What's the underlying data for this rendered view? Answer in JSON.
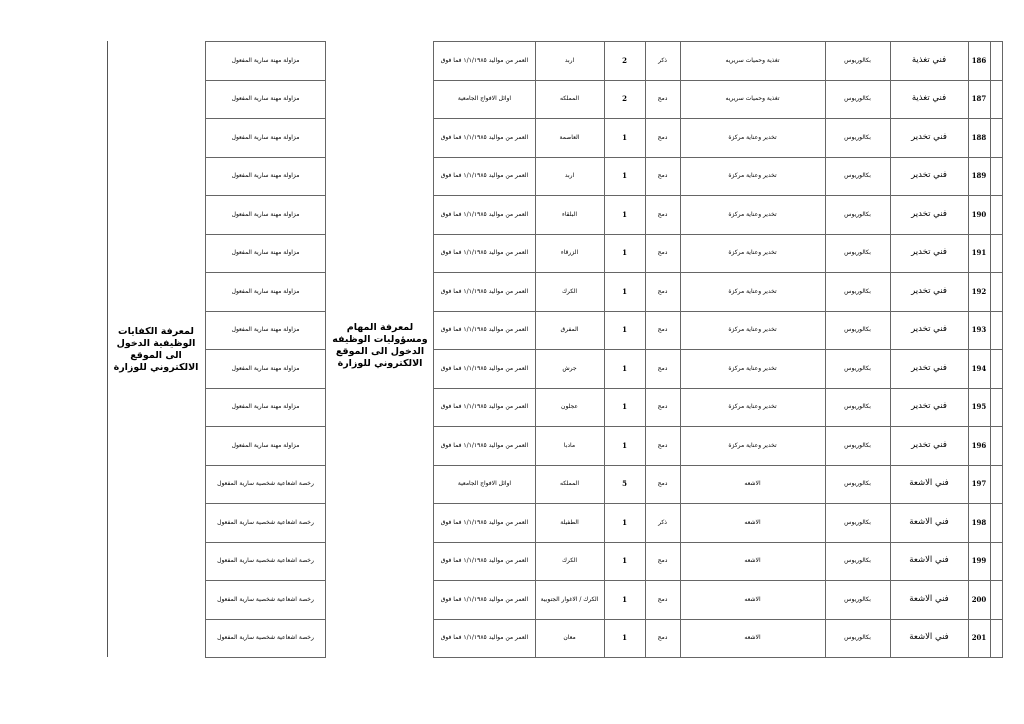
{
  "competencies_note": "لمعرفة الكفايات الوظيفية الدخول الى الموقع الالكتروني للوزارة",
  "duties_note": "لمعرفة المهام ومسؤوليات الوظيفه الدخول الى الموقع الالكتروني للوزارة",
  "rows": [
    {
      "no": "186",
      "title": "فني تغذية",
      "degree": "بكالوريوس",
      "major": "تغذية وحميات سريريه",
      "gender": "ذكر",
      "count": "2",
      "region": "اربد",
      "condition": "العمر من مواليد ١/١/١٩٨٥ فما فوق",
      "license": "مزاولة مهنة سارية المفعول"
    },
    {
      "no": "187",
      "title": "فني تغذية",
      "degree": "بكالوريوس",
      "major": "تغذية وحميات سريريه",
      "gender": "دمج",
      "count": "2",
      "region": "المملكه",
      "condition": "اوائل الافواج الجامعية",
      "license": "مزاولة مهنة سارية المفعول"
    },
    {
      "no": "188",
      "title": "فني تخدير",
      "degree": "بكالوريوس",
      "major": "تخدير وعناية مركزة",
      "gender": "دمج",
      "count": "1",
      "region": "العاصمة",
      "condition": "العمر من مواليد ١/١/١٩٨٥ فما فوق",
      "license": "مزاولة مهنة سارية المفعول"
    },
    {
      "no": "189",
      "title": "فني تخدير",
      "degree": "بكالوريوس",
      "major": "تخدير وعناية مركزة",
      "gender": "دمج",
      "count": "1",
      "region": "اربد",
      "condition": "العمر من مواليد ١/١/١٩٨٥ فما فوق",
      "license": "مزاولة مهنة سارية المفعول"
    },
    {
      "no": "190",
      "title": "فني تخدير",
      "degree": "بكالوريوس",
      "major": "تخدير وعناية مركزة",
      "gender": "دمج",
      "count": "1",
      "region": "البلقاء",
      "condition": "العمر من مواليد ١/١/١٩٨٥ فما فوق",
      "license": "مزاولة مهنة سارية المفعول"
    },
    {
      "no": "191",
      "title": "فني تخدير",
      "degree": "بكالوريوس",
      "major": "تخدير وعناية مركزة",
      "gender": "دمج",
      "count": "1",
      "region": "الزرقاء",
      "condition": "العمر من مواليد ١/١/١٩٨٥ فما فوق",
      "license": "مزاولة مهنة سارية المفعول"
    },
    {
      "no": "192",
      "title": "فني تخدير",
      "degree": "بكالوريوس",
      "major": "تخدير وعناية مركزة",
      "gender": "دمج",
      "count": "1",
      "region": "الكرك",
      "condition": "العمر من مواليد ١/١/١٩٨٥ فما فوق",
      "license": "مزاولة مهنة سارية المفعول"
    },
    {
      "no": "193",
      "title": "فني تخدير",
      "degree": "بكالوريوس",
      "major": "تخدير وعناية مركزة",
      "gender": "دمج",
      "count": "1",
      "region": "المفرق",
      "condition": "العمر من مواليد ١/١/١٩٨٥ فما فوق",
      "license": "مزاولة مهنة سارية المفعول"
    },
    {
      "no": "194",
      "title": "فني تخدير",
      "degree": "بكالوريوس",
      "major": "تخدير وعناية مركزة",
      "gender": "دمج",
      "count": "1",
      "region": "جرش",
      "condition": "العمر من مواليد ١/١/١٩٨٥ فما فوق",
      "license": "مزاولة مهنة سارية المفعول"
    },
    {
      "no": "195",
      "title": "فني تخدير",
      "degree": "بكالوريوس",
      "major": "تخدير وعناية مركزة",
      "gender": "دمج",
      "count": "1",
      "region": "عجلون",
      "condition": "العمر من مواليد ١/١/١٩٨٥ فما فوق",
      "license": "مزاولة مهنة سارية المفعول"
    },
    {
      "no": "196",
      "title": "فني تخدير",
      "degree": "بكالوريوس",
      "major": "تخدير وعناية مركزة",
      "gender": "دمج",
      "count": "1",
      "region": "مادبا",
      "condition": "العمر من مواليد ١/١/١٩٨٥ فما فوق",
      "license": "مزاولة مهنة سارية المفعول"
    },
    {
      "no": "197",
      "title": "فني الاشعة",
      "degree": "بكالوريوس",
      "major": "الاشعه",
      "gender": "دمج",
      "count": "5",
      "region": "المملكه",
      "condition": "اوائل الافواج الجامعية",
      "license": "رخصة اشعاعية شخصية سارية المفعول"
    },
    {
      "no": "198",
      "title": "فني الاشعة",
      "degree": "بكالوريوس",
      "major": "الاشعه",
      "gender": "ذكر",
      "count": "1",
      "region": "الطفيلة",
      "condition": "العمر من مواليد ١/١/١٩٨٥ فما فوق",
      "license": "رخصة اشعاعية شخصية سارية المفعول"
    },
    {
      "no": "199",
      "title": "فني الاشعة",
      "degree": "بكالوريوس",
      "major": "الاشعه",
      "gender": "دمج",
      "count": "1",
      "region": "الكرك",
      "condition": "العمر من مواليد ١/١/١٩٨٥ فما فوق",
      "license": "رخصة اشعاعية شخصية سارية المفعول"
    },
    {
      "no": "200",
      "title": "فني الاشعة",
      "degree": "بكالوريوس",
      "major": "الاشعه",
      "gender": "دمج",
      "count": "1",
      "region": "الكرك / الاغوار الجنوبية",
      "condition": "العمر من مواليد ١/١/١٩٨٥ فما فوق",
      "license": "رخصة اشعاعية شخصية سارية المفعول"
    },
    {
      "no": "201",
      "title": "فني الاشعة",
      "degree": "بكالوريوس",
      "major": "الاشعه",
      "gender": "دمج",
      "count": "1",
      "region": "معان",
      "condition": "العمر من مواليد ١/١/١٩٨٥ فما فوق",
      "license": "رخصة اشعاعية شخصية سارية المفعول"
    }
  ]
}
